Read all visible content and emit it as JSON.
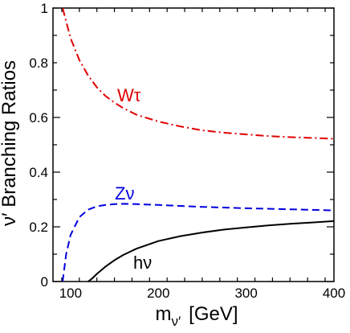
{
  "chart_data": {
    "type": "line",
    "xlabel": "m",
    "xlabel_sub": "ν′",
    "xlabel_unit": "[GeV]",
    "ylabel": "ν′ Branching Ratios",
    "xlim": [
      80,
      400
    ],
    "ylim": [
      0,
      1
    ],
    "x_ticks": [
      "100",
      "200",
      "300",
      "400"
    ],
    "y_ticks": [
      "0",
      "0.2",
      "0.4",
      "0.6",
      "0.8",
      "1"
    ],
    "series": [
      {
        "name": "Wτ",
        "color": "#e00000",
        "dash": "dashdot",
        "x": [
          91,
          100,
          110,
          120,
          130,
          140,
          150,
          160,
          175,
          200,
          225,
          250,
          275,
          300,
          325,
          350,
          375,
          400
        ],
        "y": [
          1.0,
          0.89,
          0.81,
          0.753,
          0.71,
          0.678,
          0.654,
          0.634,
          0.61,
          0.585,
          0.567,
          0.553,
          0.544,
          0.538,
          0.532,
          0.528,
          0.525,
          0.522
        ]
      },
      {
        "name": "Zν",
        "color": "#0000e0",
        "dash": "dashed",
        "x": [
          91,
          95,
          100,
          110,
          120,
          130,
          140,
          150,
          160,
          175,
          200,
          250,
          300,
          350,
          400
        ],
        "y": [
          0.0,
          0.1,
          0.17,
          0.235,
          0.263,
          0.275,
          0.28,
          0.283,
          0.284,
          0.283,
          0.28,
          0.273,
          0.268,
          0.264,
          0.26
        ]
      },
      {
        "name": "hν",
        "color": "#000000",
        "dash": "solid",
        "x": [
          120,
          125,
          130,
          140,
          150,
          160,
          175,
          200,
          225,
          250,
          275,
          300,
          325,
          350,
          375,
          400
        ],
        "y": [
          0.0,
          0.012,
          0.028,
          0.055,
          0.078,
          0.097,
          0.12,
          0.148,
          0.166,
          0.179,
          0.19,
          0.198,
          0.205,
          0.211,
          0.216,
          0.221
        ]
      }
    ]
  }
}
